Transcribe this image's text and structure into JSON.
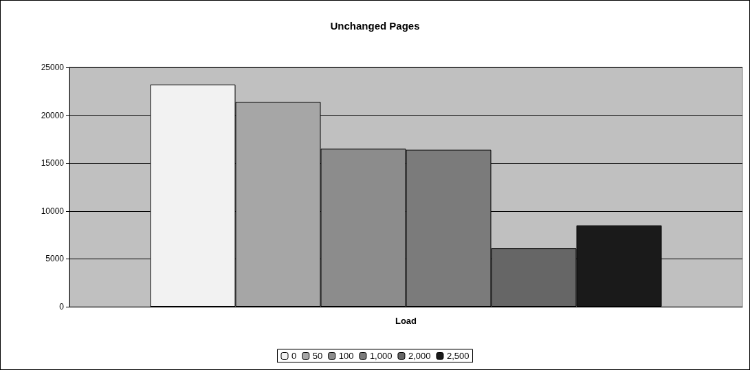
{
  "chart_data": {
    "type": "bar",
    "title": "Unchanged Pages",
    "xlabel": "Load",
    "categories": [
      null
    ],
    "series": [
      {
        "name": "0",
        "color": "#f2f2f2",
        "values": [
          23200
        ]
      },
      {
        "name": "50",
        "color": "#a6a6a6",
        "values": [
          21400
        ]
      },
      {
        "name": "100",
        "color": "#8c8c8c",
        "values": [
          16500
        ]
      },
      {
        "name": "1,000",
        "color": "#7b7b7b",
        "values": [
          16400
        ]
      },
      {
        "name": "2,000",
        "color": "#666666",
        "values": [
          6100
        ]
      },
      {
        "name": "2,500",
        "color": "#1a1a1a",
        "values": [
          8500
        ]
      }
    ],
    "ylim": [
      0,
      25000
    ],
    "yticks": [
      0,
      5000,
      10000,
      15000,
      20000,
      25000
    ],
    "grid": "y",
    "legend": "bottom"
  }
}
